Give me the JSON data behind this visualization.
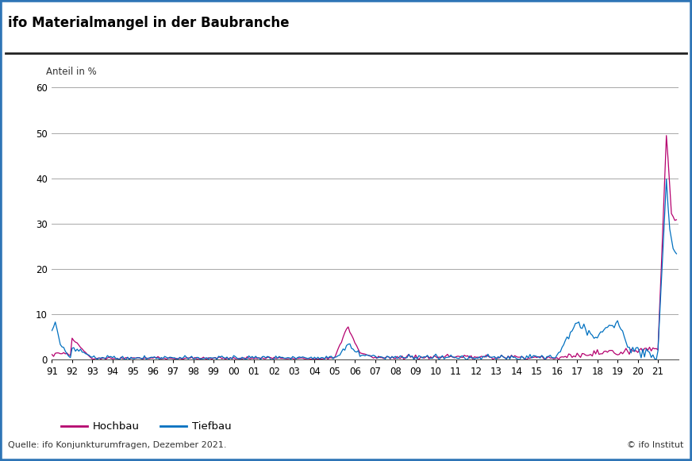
{
  "title": "ifo Materialmangel in der Baubranche",
  "ylabel": "Anteil in %",
  "source": "Quelle: ifo Konjunkturumfragen, Dezember 2021.",
  "copyright": "© ifo Institut",
  "ylim": [
    0,
    60
  ],
  "yticks": [
    0,
    10,
    20,
    30,
    40,
    50,
    60
  ],
  "background_color": "#ffffff",
  "border_color": "#2e75b6",
  "title_color": "#000000",
  "hochbau_color": "#b5006e",
  "tiefbau_color": "#0070c0",
  "legend_hochbau": "Hochbau",
  "legend_tiefbau": "Tiefbau",
  "x_labels": [
    "91",
    "92",
    "93",
    "94",
    "95",
    "96",
    "97",
    "98",
    "99",
    "00",
    "01",
    "02",
    "03",
    "04",
    "05",
    "06",
    "07",
    "08",
    "09",
    "10",
    "11",
    "12",
    "13",
    "14",
    "15",
    "16",
    "17",
    "18",
    "19",
    "20",
    "21"
  ]
}
